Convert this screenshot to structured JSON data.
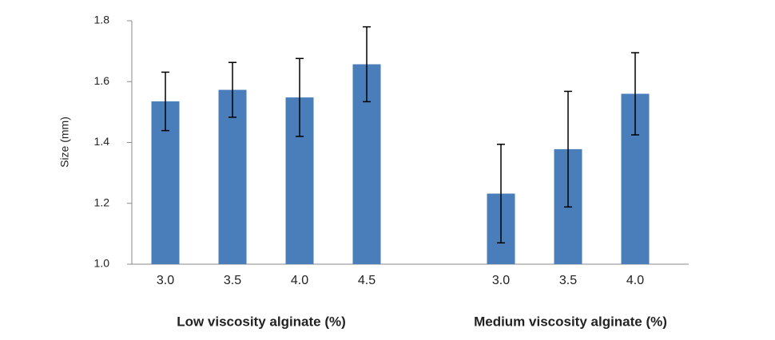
{
  "chart_data": {
    "type": "bar",
    "y_label": "Size (mm)",
    "categories": [
      "3.0",
      "3.5",
      "4.0",
      "4.5",
      null,
      "3.0",
      "3.5",
      "4.0"
    ],
    "values": [
      1.535,
      1.573,
      1.548,
      1.657,
      null,
      1.232,
      1.378,
      1.56
    ],
    "errors": [
      0.096,
      0.09,
      0.128,
      0.123,
      null,
      0.162,
      0.19,
      0.135
    ],
    "group_labels": [
      "Low viscosity alginate (%)",
      "Medium viscosity alginate (%)"
    ],
    "color": "#4a7ebb",
    "ylim": [
      1.0,
      1.8
    ],
    "yticks": [
      {
        "value": 1.0,
        "label": "1.0"
      },
      1.2,
      1.4,
      1.6,
      1.8
    ],
    "grid": false
  }
}
